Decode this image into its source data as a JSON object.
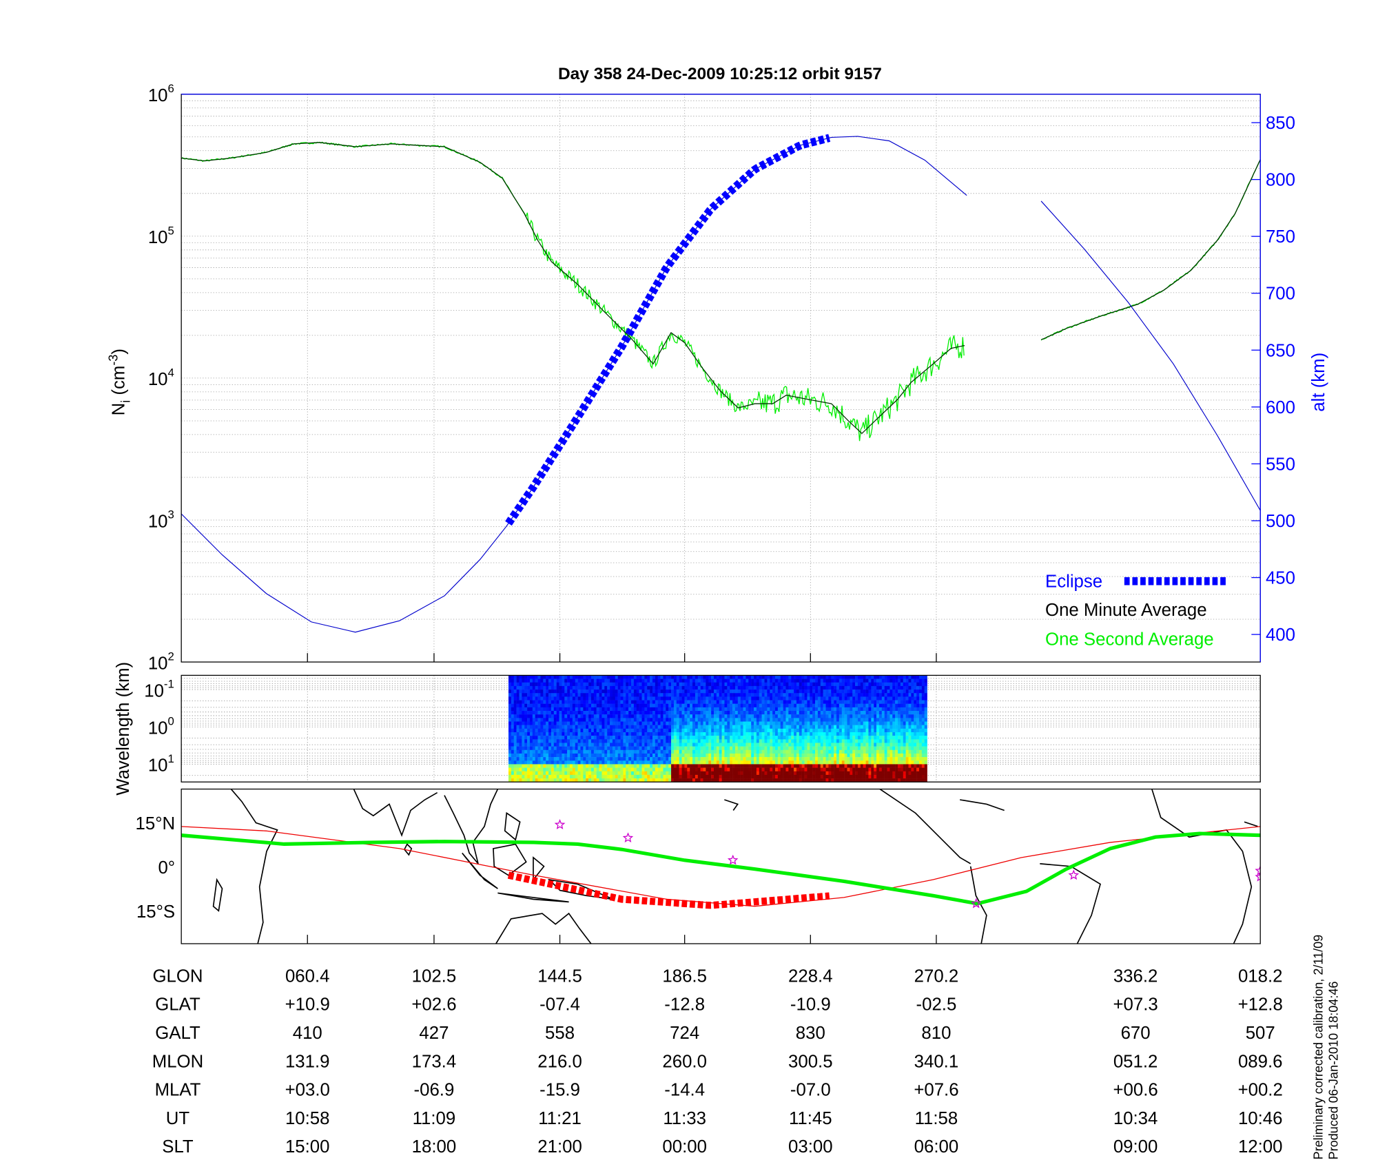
{
  "title": "Day 358  24-Dec-2009 10:25:12   orbit 9157",
  "chart_data": [
    {
      "type": "line",
      "name": "ion density and altitude",
      "x_units": "minutes from plot start",
      "xlim": [
        0,
        102.9
      ],
      "y_scale": "log",
      "ylim": [
        100,
        1000000
      ],
      "ylabel_parts": [
        "N",
        "i",
        " (cm",
        "-3",
        ")"
      ],
      "ytick_base": "10",
      "ytick_exponents": [
        "6",
        "5",
        "4",
        "3",
        "2"
      ],
      "y2label": "alt (km)",
      "y2lim": [
        376,
        875
      ],
      "y2ticks": [
        "850",
        "800",
        "750",
        "700",
        "650",
        "600",
        "550",
        "500",
        "450",
        "400"
      ],
      "legend": {
        "placement": "bottom-right",
        "eclipse": "Eclipse",
        "minute": "One Minute Average",
        "second": "One Second Average"
      },
      "colors": {
        "altitude": "#0000cc",
        "eclipse": "#0000ff",
        "minute": "#003300",
        "second": "#00ee00"
      },
      "series": [
        {
          "name": "One Minute Average (log10 Ni)",
          "segments": [
            [
              [
                0,
                5.55
              ],
              [
                2.2,
                5.53
              ],
              [
                4.7,
                5.55
              ],
              [
                8.1,
                5.59
              ],
              [
                10.7,
                5.65
              ],
              [
                13.2,
                5.66
              ],
              [
                16.6,
                5.63
              ],
              [
                20.0,
                5.65
              ],
              [
                22.5,
                5.64
              ],
              [
                25.1,
                5.63
              ],
              [
                28.5,
                5.52
              ],
              [
                30.6,
                5.41
              ],
              [
                32.7,
                5.16
              ],
              [
                34.0,
                4.97
              ],
              [
                35.3,
                4.82
              ],
              [
                37.8,
                4.66
              ],
              [
                40.3,
                4.47
              ],
              [
                42.9,
                4.28
              ],
              [
                45.0,
                4.1
              ],
              [
                46.7,
                4.32
              ],
              [
                48.0,
                4.25
              ],
              [
                49.7,
                4.07
              ],
              [
                51.4,
                3.91
              ],
              [
                53.1,
                3.79
              ],
              [
                54.7,
                3.82
              ],
              [
                56.4,
                3.82
              ],
              [
                57.7,
                3.88
              ],
              [
                59.8,
                3.85
              ],
              [
                62.0,
                3.82
              ],
              [
                63.6,
                3.7
              ],
              [
                64.9,
                3.61
              ],
              [
                66.6,
                3.73
              ],
              [
                68.3,
                3.85
              ],
              [
                69.6,
                3.97
              ],
              [
                71.7,
                4.1
              ],
              [
                73.4,
                4.21
              ],
              [
                74.7,
                4.23
              ]
            ],
            [
              [
                82.0,
                4.27
              ],
              [
                84.4,
                4.35
              ],
              [
                87.8,
                4.44
              ],
              [
                91.2,
                4.52
              ],
              [
                93.7,
                4.62
              ],
              [
                96.3,
                4.76
              ],
              [
                98.8,
                4.97
              ],
              [
                100.5,
                5.16
              ],
              [
                102.9,
                5.54
              ]
            ]
          ]
        },
        {
          "name": "Altitude (km)",
          "segments": [
            [
              [
                0,
                506
              ],
              [
                3.9,
                470
              ],
              [
                8.1,
                436
              ],
              [
                12.4,
                411
              ],
              [
                16.6,
                402
              ],
              [
                20.8,
                412
              ],
              [
                25.1,
                434
              ],
              [
                28.5,
                466
              ],
              [
                31.0,
                495
              ],
              [
                33.6,
                530
              ],
              [
                37.8,
                591
              ],
              [
                42.0,
                653
              ],
              [
                46.3,
                723
              ],
              [
                50.5,
                774
              ],
              [
                54.7,
                809
              ],
              [
                59.0,
                830
              ],
              [
                62.0,
                837
              ],
              [
                64.5,
                838
              ],
              [
                67.5,
                834
              ],
              [
                70.9,
                817
              ],
              [
                74.9,
                786
              ]
            ],
            [
              [
                82.0,
                781
              ],
              [
                86.1,
                739
              ],
              [
                90.3,
                692
              ],
              [
                94.6,
                638
              ],
              [
                98.8,
                575
              ],
              [
                102.9,
                509
              ]
            ]
          ]
        },
        {
          "name": "Eclipse",
          "t_range": [
            31.2,
            62.0
          ]
        }
      ]
    },
    {
      "type": "heatmap",
      "name": "wavelength spectrogram",
      "ylabel": "Wavelength (km)",
      "ytick_base": "10",
      "ytick_exponents": [
        "-1",
        "0",
        "1"
      ],
      "data_t_range": [
        31.2,
        71.1
      ],
      "intense_from_t": 46.6
    },
    {
      "type": "line",
      "name": "ground track map",
      "yticks": [
        "15°N",
        "0°",
        "15°S"
      ],
      "ylim": [
        -25.6,
        27
      ],
      "colors": {
        "track": "#00ee00",
        "dip_equator": "#ee0000",
        "eclipse": "#ff0000",
        "stars": "#cc00cc"
      },
      "track_lat": [
        [
          0,
          10.9
        ],
        [
          9.8,
          7.9
        ],
        [
          18.3,
          8.5
        ],
        [
          25.1,
          8.8
        ],
        [
          33.6,
          8.5
        ],
        [
          37.8,
          7.9
        ],
        [
          42.0,
          6.1
        ],
        [
          48.0,
          2.4
        ],
        [
          54.7,
          -0.6
        ],
        [
          63.2,
          -4.8
        ],
        [
          71.7,
          -9.7
        ],
        [
          75.9,
          -12.4
        ],
        [
          80.6,
          -8.2
        ],
        [
          84.4,
          -0.6
        ],
        [
          88.6,
          6.4
        ],
        [
          92.9,
          10.3
        ],
        [
          97.1,
          11.5
        ],
        [
          102.9,
          10.9
        ]
      ],
      "dip_equator_lat": [
        [
          0,
          13.9
        ],
        [
          8.1,
          12.4
        ],
        [
          20.8,
          6.4
        ],
        [
          33.6,
          -2.7
        ],
        [
          46.3,
          -10.9
        ],
        [
          54.7,
          -13.3
        ],
        [
          63.2,
          -10.3
        ],
        [
          71.7,
          -4.2
        ],
        [
          80.1,
          3.3
        ],
        [
          88.6,
          8.5
        ],
        [
          102.9,
          13.9
        ]
      ],
      "eclipse_lat": [
        [
          31.2,
          -2.7
        ],
        [
          42.0,
          -10.9
        ],
        [
          50.5,
          -13.0
        ],
        [
          62.0,
          -9.7
        ]
      ],
      "stars": [
        [
          36.1,
          14.5
        ],
        [
          42.6,
          10.0
        ],
        [
          52.6,
          2.4
        ],
        [
          75.8,
          -12.4
        ],
        [
          85.1,
          -2.7
        ],
        [
          102.9,
          -1.2
        ],
        [
          102.9,
          -3.3
        ]
      ]
    }
  ],
  "table": {
    "row_labels": [
      "GLON",
      "GLAT",
      "GALT",
      "MLON",
      "MLAT",
      "UT",
      "SLT"
    ],
    "columns": [
      [
        "060.4",
        "+10.9",
        "410",
        "131.9",
        "+03.0",
        "10:58",
        "15:00"
      ],
      [
        "102.5",
        "+02.6",
        "427",
        "173.4",
        "-06.9",
        "11:09",
        "18:00"
      ],
      [
        "144.5",
        "-07.4",
        "558",
        "216.0",
        "-15.9",
        "11:21",
        "21:00"
      ],
      [
        "186.5",
        "-12.8",
        "724",
        "260.0",
        "-14.4",
        "11:33",
        "00:00"
      ],
      [
        "228.4",
        "-10.9",
        "830",
        "300.5",
        "-07.0",
        "11:45",
        "03:00"
      ],
      [
        "270.2",
        "-02.5",
        "810",
        "340.1",
        "+07.6",
        "11:58",
        "06:00"
      ],
      [
        "336.2",
        "+07.3",
        "670",
        "051.2",
        "+00.6",
        "10:34",
        "09:00"
      ],
      [
        "018.2",
        "+12.8",
        "507",
        "089.6",
        "+00.2",
        "10:46",
        "12:00"
      ]
    ]
  },
  "footer": [
    "Preliminary corrected calibration, 2/11/09",
    "Produced 06-Jan-2010 18:04:46"
  ]
}
